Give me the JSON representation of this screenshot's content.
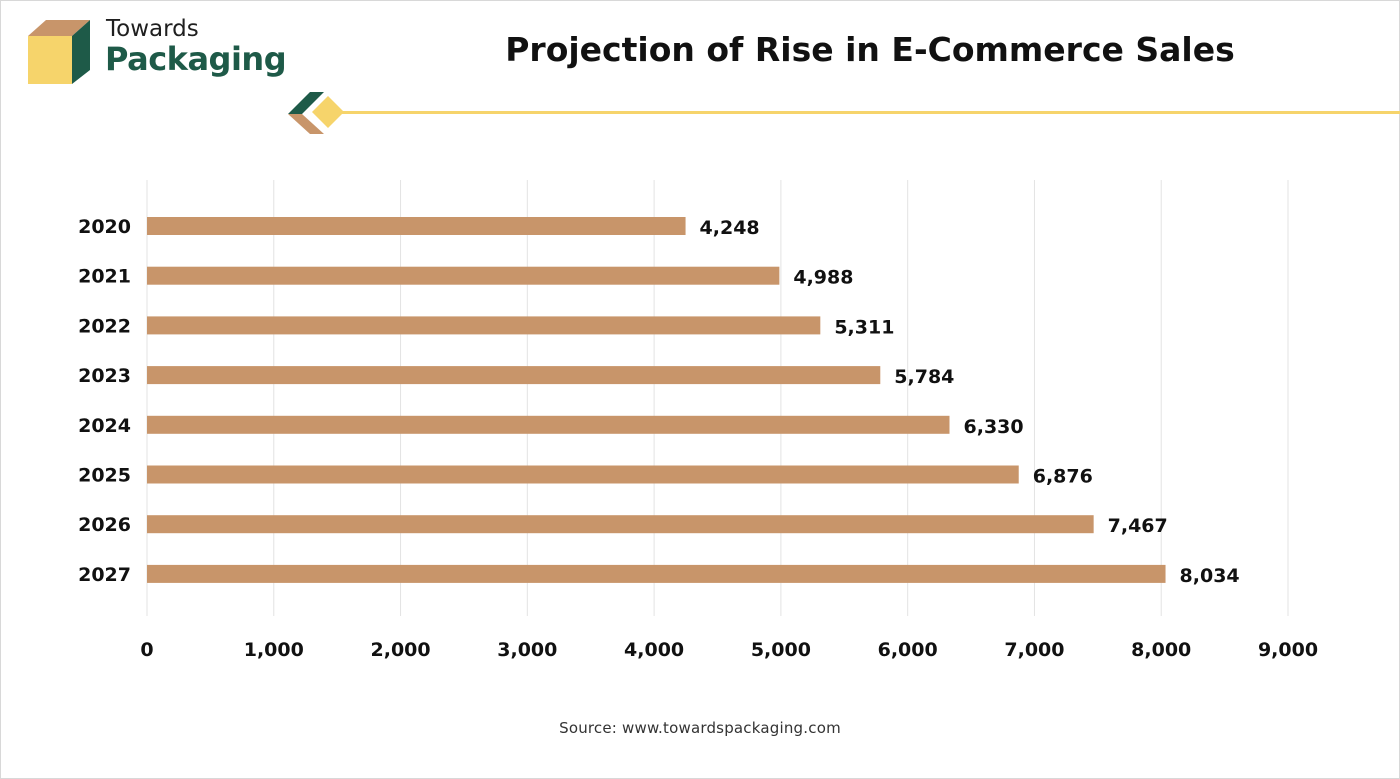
{
  "brand": {
    "line1": "Towards",
    "line2": "Packaging",
    "colors": {
      "green": "#1e5a48",
      "tan": "#c8956a",
      "yellow": "#f6d46b"
    }
  },
  "title": "Projection of Rise in E-Commerce Sales",
  "source": "Source: www.towardspackaging.com",
  "chart_data": {
    "type": "bar",
    "orientation": "horizontal",
    "categories": [
      "2020",
      "2021",
      "2022",
      "2023",
      "2024",
      "2025",
      "2026",
      "2027"
    ],
    "values": [
      4248,
      4988,
      5311,
      5784,
      6330,
      6876,
      7467,
      8034
    ],
    "value_labels": [
      "4,248",
      "4,988",
      "5,311",
      "5,784",
      "6,330",
      "6,876",
      "7,467",
      "8,034"
    ],
    "xlim": [
      0,
      9000
    ],
    "xticks": [
      0,
      1000,
      2000,
      3000,
      4000,
      5000,
      6000,
      7000,
      8000,
      9000
    ],
    "xtick_labels": [
      "0",
      "1,000",
      "2,000",
      "3,000",
      "4,000",
      "5,000",
      "6,000",
      "7,000",
      "8,000",
      "9,000"
    ],
    "grid": "vertical",
    "legend": "none",
    "bar_color": "#c8956a"
  }
}
